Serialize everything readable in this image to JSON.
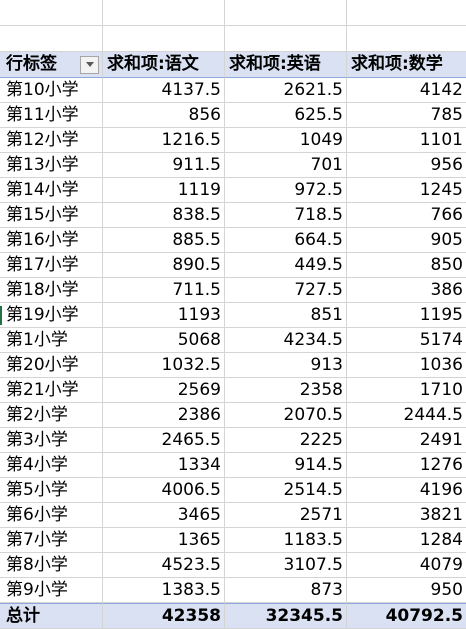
{
  "pivot": {
    "header": {
      "row_label": "行标签",
      "col_chinese": "求和项:语文",
      "col_english": "求和项:英语",
      "col_math": "求和项:数学"
    },
    "rows": [
      {
        "name": "第10小学",
        "chinese": "4137.5",
        "english": "2621.5",
        "math": "4142"
      },
      {
        "name": "第11小学",
        "chinese": "856",
        "english": "625.5",
        "math": "785"
      },
      {
        "name": "第12小学",
        "chinese": "1216.5",
        "english": "1049",
        "math": "1101"
      },
      {
        "name": "第13小学",
        "chinese": "911.5",
        "english": "701",
        "math": "956"
      },
      {
        "name": "第14小学",
        "chinese": "1119",
        "english": "972.5",
        "math": "1245"
      },
      {
        "name": "第15小学",
        "chinese": "838.5",
        "english": "718.5",
        "math": "766"
      },
      {
        "name": "第16小学",
        "chinese": "885.5",
        "english": "664.5",
        "math": "905"
      },
      {
        "name": "第17小学",
        "chinese": "890.5",
        "english": "449.5",
        "math": "850"
      },
      {
        "name": "第18小学",
        "chinese": "711.5",
        "english": "727.5",
        "math": "386"
      },
      {
        "name": "第19小学",
        "chinese": "1193",
        "english": "851",
        "math": "1195"
      },
      {
        "name": "第1小学",
        "chinese": "5068",
        "english": "4234.5",
        "math": "5174"
      },
      {
        "name": "第20小学",
        "chinese": "1032.5",
        "english": "913",
        "math": "1036"
      },
      {
        "name": "第21小学",
        "chinese": "2569",
        "english": "2358",
        "math": "1710"
      },
      {
        "name": "第2小学",
        "chinese": "2386",
        "english": "2070.5",
        "math": "2444.5"
      },
      {
        "name": "第3小学",
        "chinese": "2465.5",
        "english": "2225",
        "math": "2491"
      },
      {
        "name": "第4小学",
        "chinese": "1334",
        "english": "914.5",
        "math": "1276"
      },
      {
        "name": "第5小学",
        "chinese": "4006.5",
        "english": "2514.5",
        "math": "4196"
      },
      {
        "name": "第6小学",
        "chinese": "3465",
        "english": "2571",
        "math": "3821"
      },
      {
        "name": "第7小学",
        "chinese": "1365",
        "english": "1183.5",
        "math": "1284"
      },
      {
        "name": "第8小学",
        "chinese": "4523.5",
        "english": "3107.5",
        "math": "4079"
      },
      {
        "name": "第9小学",
        "chinese": "1383.5",
        "english": "873",
        "math": "950"
      }
    ],
    "total": {
      "name": "总计",
      "chinese": "42358",
      "english": "32345.5",
      "math": "40792.5"
    }
  },
  "colors": {
    "header_fill": "#d9e1f2",
    "grid_line": "#d4d4d4",
    "selection": "#217346"
  },
  "icons": {
    "filter_dropdown": "chevron-down-icon"
  }
}
